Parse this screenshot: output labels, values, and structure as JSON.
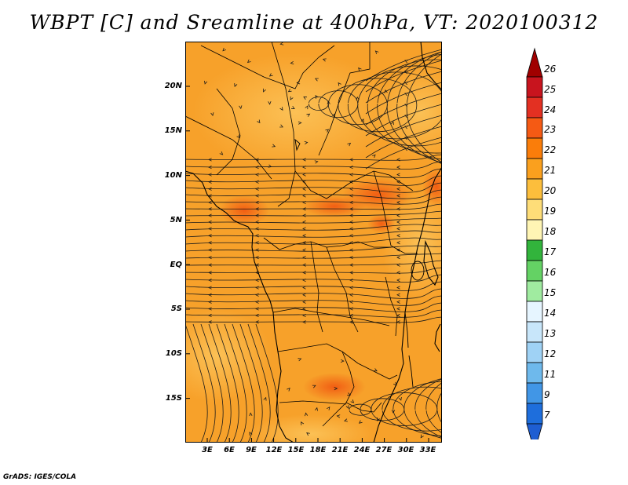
{
  "title": "WBPT [C] and Sreamline at 400hPa, VT: 2020100312",
  "footer": "GrADS: IGES/COLA",
  "map": {
    "lat_labels": [
      "20N",
      "15N",
      "10N",
      "5N",
      "EQ",
      "5S",
      "10S",
      "15S"
    ],
    "lon_labels": [
      "3E",
      "6E",
      "9E",
      "12E",
      "15E",
      "18E",
      "21E",
      "24E",
      "27E",
      "30E",
      "33E"
    ],
    "background_color": "#f7a12a",
    "features": {
      "vortex_center": "near 15E, 18N",
      "warm_patches": "orange-red near 6E 6N, 20E-27E 8N, 18E-24E 14S"
    }
  },
  "colorbar": {
    "labels": [
      "26",
      "25",
      "24",
      "23",
      "22",
      "21",
      "20",
      "19",
      "18",
      "17",
      "16",
      "15",
      "14",
      "13",
      "12",
      "11",
      "9",
      "7"
    ],
    "colors": [
      "#a00000",
      "#c8141e",
      "#e33022",
      "#f55a14",
      "#fa7d0a",
      "#faa01e",
      "#fcbe3c",
      "#fedd78",
      "#fff5b4",
      "#32b43c",
      "#64d264",
      "#a0eba0",
      "#e6f5ff",
      "#c8e6fa",
      "#9fd2f5",
      "#6eb9ec",
      "#4196e6",
      "#1e6edc",
      "#1e5ed2"
    ]
  }
}
